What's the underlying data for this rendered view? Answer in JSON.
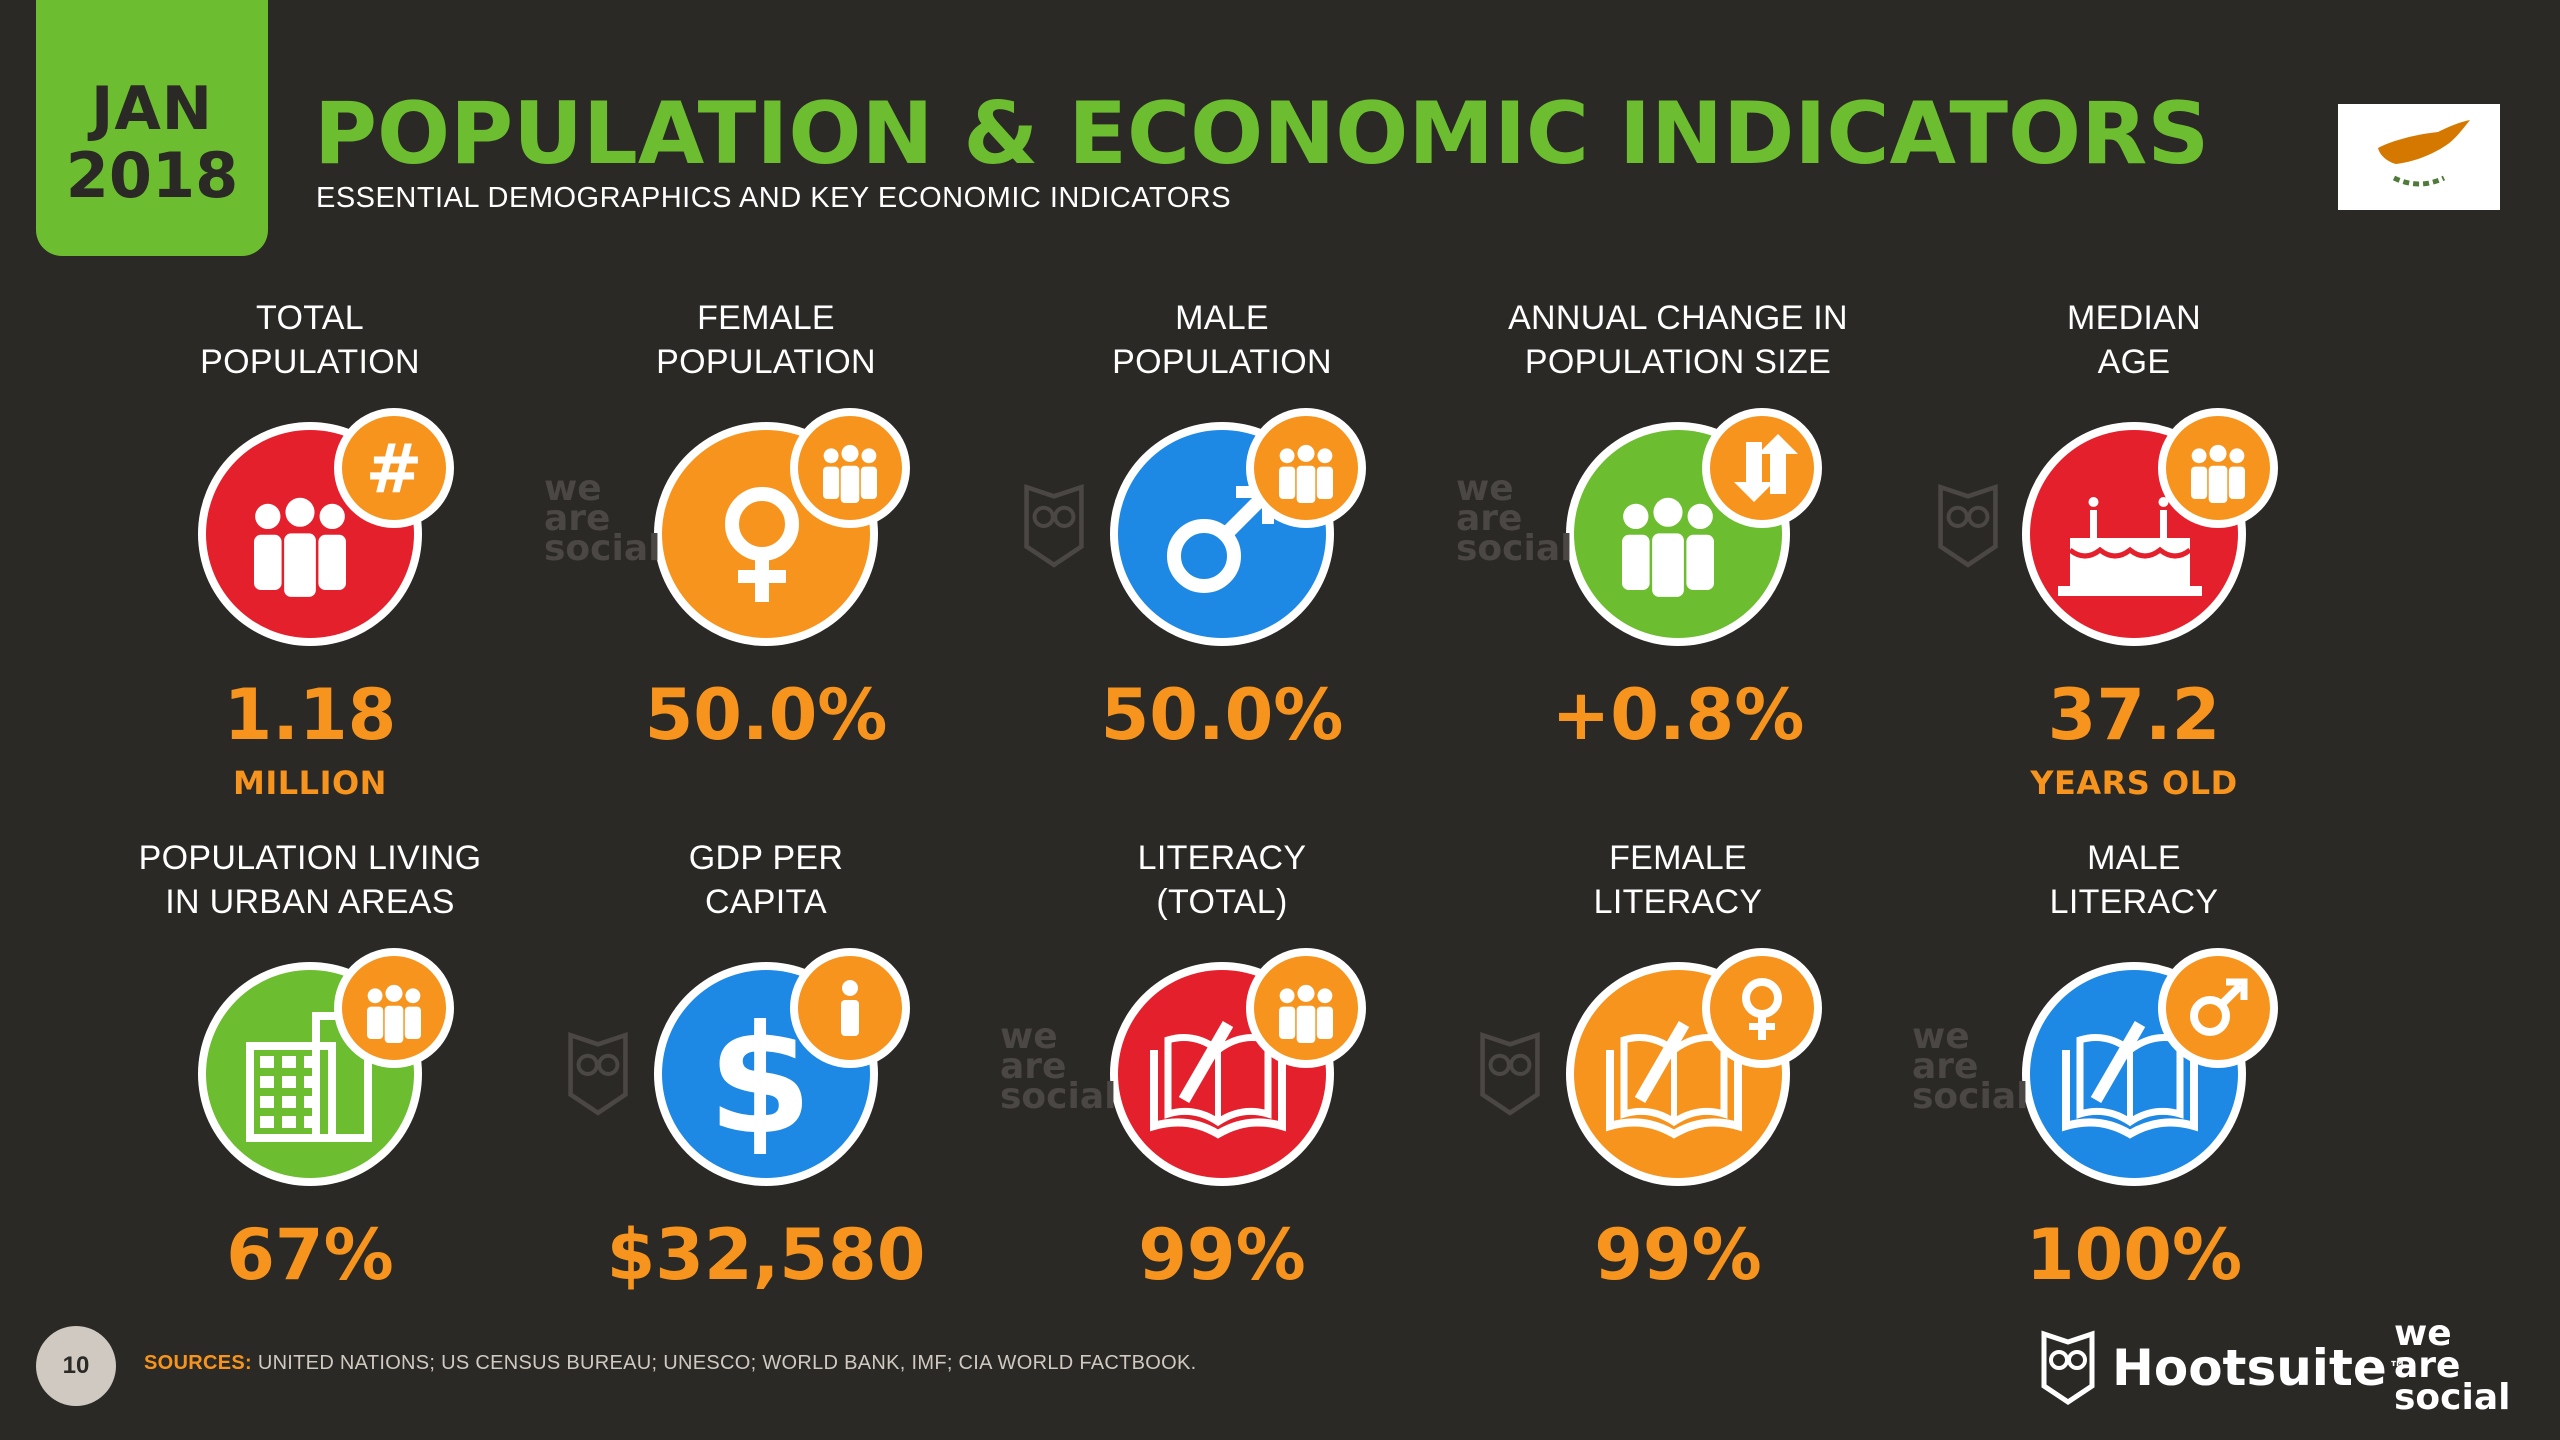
{
  "header": {
    "month": "JAN",
    "year": "2018",
    "title": "POPULATION & ECONOMIC INDICATORS",
    "subtitle": "ESSENTIAL DEMOGRAPHICS AND KEY ECONOMIC INDICATORS"
  },
  "colors": {
    "green": "#6cbd2f",
    "orange": "#f7941d",
    "red": "#e4202c",
    "blue": "#1e88e5",
    "background": "#2b2926"
  },
  "indicators": [
    {
      "label1": "TOTAL",
      "label2": "POPULATION",
      "value": "1.18",
      "unit": "MILLION",
      "icon": "people-icon",
      "badge": "hash-icon",
      "color": "#e4202c"
    },
    {
      "label1": "FEMALE",
      "label2": "POPULATION",
      "value": "50.0%",
      "unit": "",
      "icon": "female-symbol-icon",
      "badge": "people-icon",
      "color": "#f7941d"
    },
    {
      "label1": "MALE",
      "label2": "POPULATION",
      "value": "50.0%",
      "unit": "",
      "icon": "male-symbol-icon",
      "badge": "people-icon",
      "color": "#1e88e5"
    },
    {
      "label1": "ANNUAL CHANGE IN",
      "label2": "POPULATION SIZE",
      "value": "+0.8%",
      "unit": "",
      "icon": "people-icon",
      "badge": "up-down-arrows-icon",
      "color": "#6cbd2f"
    },
    {
      "label1": "MEDIAN",
      "label2": "AGE",
      "value": "37.2",
      "unit": "YEARS OLD",
      "icon": "birthday-cake-icon",
      "badge": "people-icon",
      "color": "#e4202c"
    },
    {
      "label1": "POPULATION LIVING",
      "label2": "IN URBAN AREAS",
      "value": "67%",
      "unit": "",
      "icon": "building-icon",
      "badge": "people-icon",
      "color": "#6cbd2f"
    },
    {
      "label1": "GDP PER",
      "label2": "CAPITA",
      "value": "$32,580",
      "unit": "",
      "icon": "dollar-icon",
      "badge": "person-icon",
      "color": "#1e88e5"
    },
    {
      "label1": "LITERACY",
      "label2": "(TOTAL)",
      "value": "99%",
      "unit": "",
      "icon": "book-pen-icon",
      "badge": "people-icon",
      "color": "#e4202c"
    },
    {
      "label1": "FEMALE",
      "label2": "LITERACY",
      "value": "99%",
      "unit": "",
      "icon": "book-pen-icon",
      "badge": "female-symbol-icon",
      "color": "#f7941d"
    },
    {
      "label1": "MALE",
      "label2": "LITERACY",
      "value": "100%",
      "unit": "",
      "icon": "book-pen-icon",
      "badge": "male-symbol-icon",
      "color": "#1e88e5"
    }
  ],
  "watermark": {
    "l1": "we",
    "l2": "are",
    "l3": "social"
  },
  "footer": {
    "page": "10",
    "sources_label": "SOURCES:",
    "sources_text": " UNITED NATIONS; US CENSUS BUREAU; UNESCO; WORLD BANK, IMF; CIA WORLD FACTBOOK.",
    "hootsuite": "Hootsuite",
    "tm": "™",
    "was1": "we",
    "was2": "are",
    "was3": "social"
  }
}
